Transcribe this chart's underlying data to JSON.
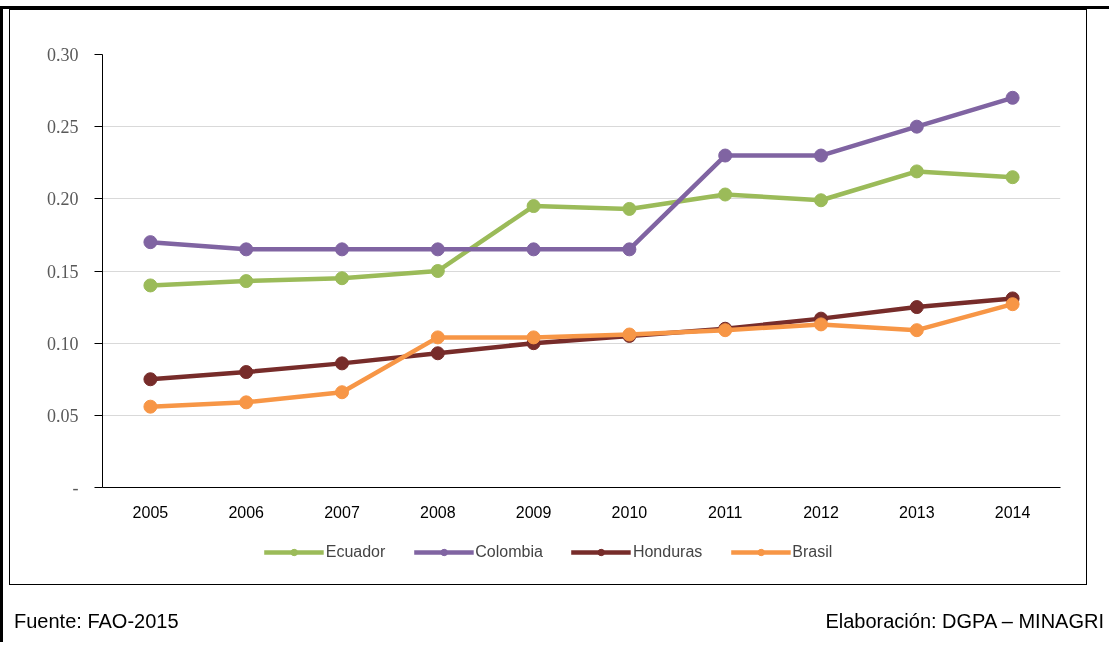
{
  "chart_data": {
    "type": "line",
    "categories": [
      "2005",
      "2006",
      "2007",
      "2008",
      "2009",
      "2010",
      "2011",
      "2012",
      "2013",
      "2014"
    ],
    "series": [
      {
        "name": "Ecuador",
        "color": "#9bbb59",
        "values": [
          0.14,
          0.143,
          0.145,
          0.15,
          0.195,
          0.193,
          0.203,
          0.199,
          0.219,
          0.215
        ]
      },
      {
        "name": "Colombia",
        "color": "#8064a2",
        "values": [
          0.17,
          0.165,
          0.165,
          0.165,
          0.165,
          0.165,
          0.23,
          0.23,
          0.25,
          0.27
        ]
      },
      {
        "name": "Honduras",
        "color": "#772c2a",
        "values": [
          0.075,
          0.08,
          0.086,
          0.093,
          0.1,
          0.105,
          0.11,
          0.117,
          0.125,
          0.131
        ]
      },
      {
        "name": "Brasil",
        "color": "#f79646",
        "values": [
          0.056,
          0.059,
          0.066,
          0.104,
          0.104,
          0.106,
          0.109,
          0.113,
          0.109,
          0.127
        ]
      }
    ],
    "ylim": [
      0,
      0.3
    ],
    "yticks": [
      {
        "value": 0,
        "label": "-"
      },
      {
        "value": 0.05,
        "label": "0.05"
      },
      {
        "value": 0.1,
        "label": "0.10"
      },
      {
        "value": 0.15,
        "label": "0.15"
      },
      {
        "value": 0.2,
        "label": "0.20"
      },
      {
        "value": 0.25,
        "label": "0.25"
      },
      {
        "value": 0.3,
        "label": "0.30"
      }
    ],
    "grid": "y",
    "legend": "bottom",
    "marker": "circle",
    "line_style": "solid",
    "annotations": [
      "Fuente: FAO-2015",
      "Elaboración: DGPA – MINAGRI"
    ]
  }
}
